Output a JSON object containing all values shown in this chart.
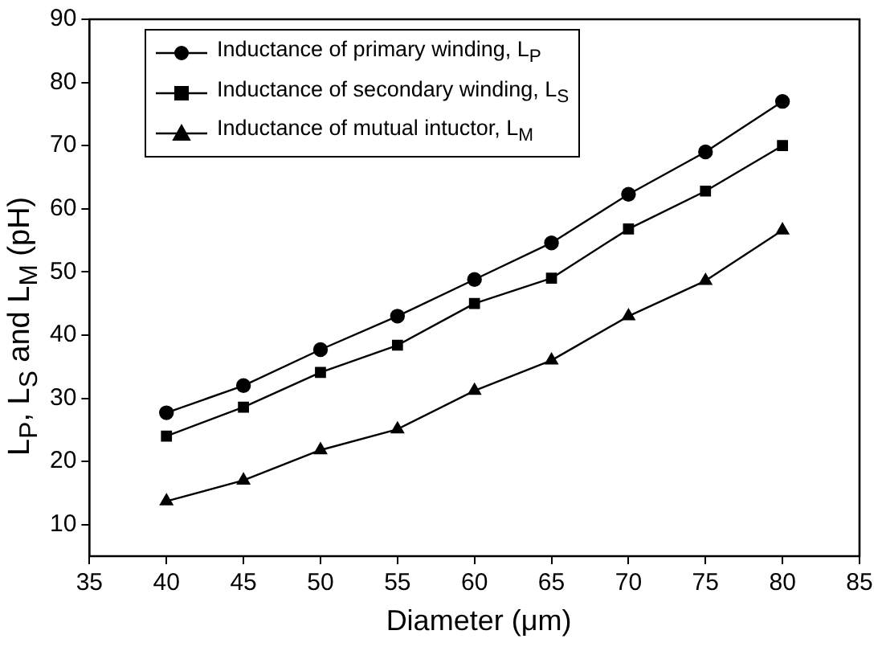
{
  "chart_data": {
    "type": "line",
    "xlabel": "Diameter (μm)",
    "ylabel": "L$_{P}$, L$_{S}$ and L$_{M}$ (pH)",
    "x": [
      40,
      45,
      50,
      55,
      60,
      65,
      70,
      75,
      80
    ],
    "xlim": [
      35,
      85
    ],
    "xticks": [
      35,
      40,
      45,
      50,
      55,
      60,
      65,
      70,
      75,
      80,
      85
    ],
    "ylim": [
      5,
      90
    ],
    "yticks": [
      10,
      20,
      30,
      40,
      50,
      60,
      70,
      80,
      90
    ],
    "grid": false,
    "legend": "top left",
    "line_style": "solid",
    "series": [
      {
        "name": "Inductance of primary winding, L$_{P}$",
        "color": "#000000",
        "marker": "circle",
        "values": [
          27.7,
          32,
          37.7,
          43,
          48.8,
          54.6,
          62.3,
          69,
          77
        ]
      },
      {
        "name": "Inductance of secondary winding, L$_{S}$",
        "color": "#000000",
        "marker": "square",
        "values": [
          24,
          28.6,
          34.1,
          38.4,
          45,
          49,
          56.8,
          62.8,
          70
        ]
      },
      {
        "name": "Inductance of mutual intuctor, L$_{M}$",
        "color": "#000000",
        "marker": "triangle",
        "values": [
          13.7,
          17,
          21.8,
          25.1,
          31.2,
          36,
          43,
          48.6,
          56.6
        ]
      }
    ]
  }
}
